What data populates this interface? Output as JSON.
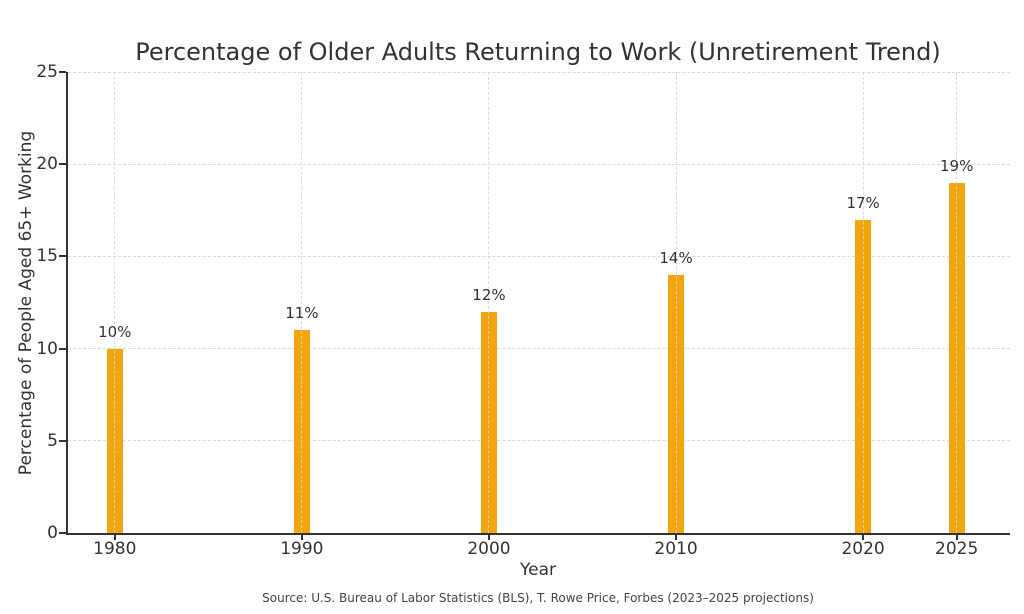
{
  "chart_data": {
    "type": "bar",
    "title": "Percentage of Older Adults Returning to Work (Unretirement Trend)",
    "xlabel": "Year",
    "ylabel": "Percentage of People Aged 65+ Working",
    "source_note": "Source: U.S. Bureau of Labor Statistics (BLS), T. Rowe Price, Forbes (2023–2025 projections)",
    "x": [
      1980,
      1990,
      2000,
      2010,
      2020,
      2025
    ],
    "values": [
      10,
      11,
      12,
      14,
      17,
      19
    ],
    "bar_labels": [
      "10%",
      "11%",
      "12%",
      "14%",
      "17%",
      "19%"
    ],
    "xtick_labels": [
      "1980",
      "1990",
      "2000",
      "2010",
      "2020",
      "2025"
    ],
    "ytick_values": [
      0,
      5,
      10,
      15,
      20,
      25
    ],
    "ytick_labels": [
      "0",
      "5",
      "10",
      "15",
      "20",
      "25"
    ],
    "ylim": [
      0,
      25
    ],
    "xlim": [
      1977.5,
      2027.85
    ],
    "grid": "dashed, horizontal and vertical, gridlines at every tick",
    "legend": "none",
    "colors": {
      "bar": "#F2A50C",
      "axis": "#333333",
      "grid": "#D9D9D9",
      "text": "#333333",
      "background": "#FFFFFF"
    }
  }
}
